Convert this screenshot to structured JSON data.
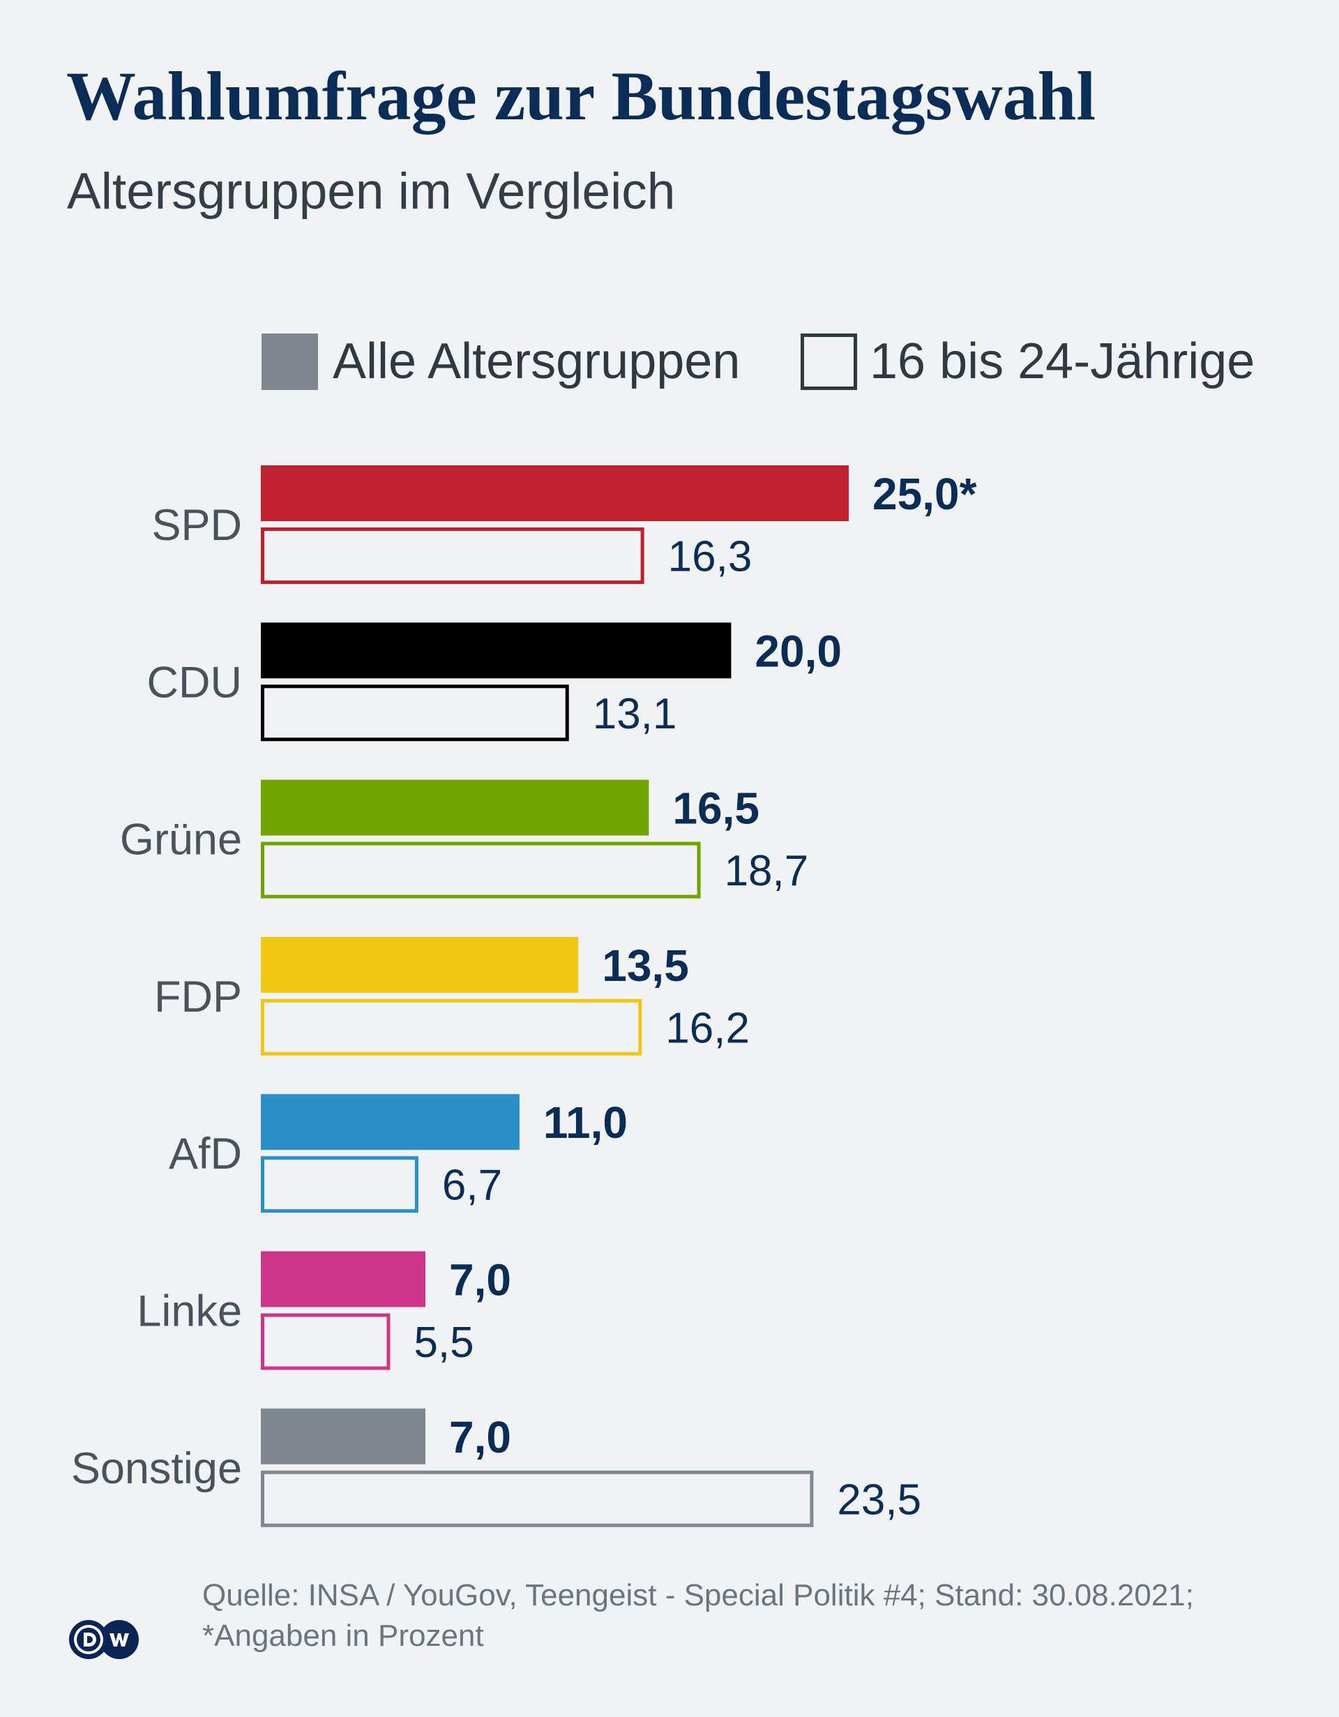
{
  "header": {
    "title": "Wahlumfrage zur Bundestagswahl",
    "subtitle": "Altersgruppen im Vergleich"
  },
  "legend": {
    "items": [
      {
        "label": "Alle Altersgruppen",
        "style": "filled",
        "color": "#7f8790"
      },
      {
        "label": "16 bis 24-Jährige",
        "style": "outline",
        "color": "#2f3942"
      }
    ]
  },
  "chart_data": {
    "type": "bar",
    "orientation": "horizontal",
    "title": "Wahlumfrage zur Bundestagswahl",
    "subtitle": "Altersgruppen im Vergleich",
    "xlabel": "",
    "ylabel": "",
    "grid": false,
    "legend_position": "top",
    "xlim": [
      0,
      25
    ],
    "unit_note": "*Angaben in Prozent",
    "categories": [
      "SPD",
      "CDU",
      "Grüne",
      "FDP",
      "AfD",
      "Linke",
      "Sonstige"
    ],
    "colors": [
      "#be202e",
      "#000000",
      "#70a400",
      "#f0c812",
      "#2b8fc7",
      "#cd3589",
      "#7f8790"
    ],
    "series": [
      {
        "name": "Alle Altersgruppen",
        "style": "filled",
        "values": [
          25.0,
          20.0,
          16.5,
          13.5,
          11.0,
          7.0,
          7.0
        ],
        "labels": [
          "25,0*",
          "20,0",
          "16,5",
          "13,5",
          "11,0",
          "7,0",
          "7,0"
        ]
      },
      {
        "name": "16 bis 24-Jährige",
        "style": "outline",
        "values": [
          16.3,
          13.1,
          18.7,
          16.2,
          6.7,
          5.5,
          23.5
        ],
        "labels": [
          "16,3",
          "13,1",
          "18,7",
          "16,2",
          "6,7",
          "5,5",
          "23,5"
        ]
      }
    ]
  },
  "footer": {
    "source_line": "Quelle: INSA / YouGov, Teengeist - Special Politik #4; Stand: 30.08.2021;",
    "note_line": "*Angaben in Prozent",
    "logo_text": "DW"
  }
}
